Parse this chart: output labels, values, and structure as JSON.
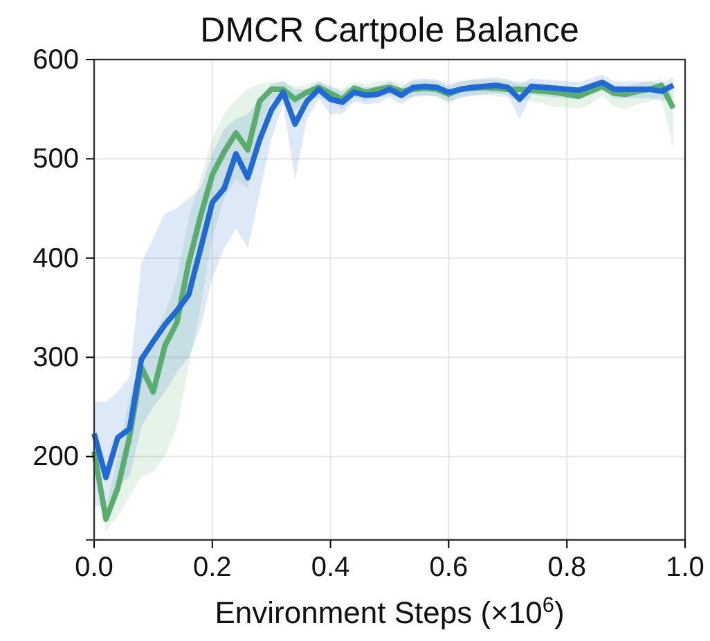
{
  "chart_data": {
    "type": "line",
    "title": "DMCR Cartpole Balance",
    "xlabel": "Environment Steps (×10$^{6}$)",
    "x": [
      0,
      0.02,
      0.04,
      0.06,
      0.08,
      0.1,
      0.12,
      0.14,
      0.16,
      0.18,
      0.2,
      0.22,
      0.24,
      0.26,
      0.28,
      0.3,
      0.32,
      0.34,
      0.36,
      0.38,
      0.4,
      0.42,
      0.44,
      0.46,
      0.48,
      0.5,
      0.52,
      0.54,
      0.56,
      0.58,
      0.6,
      0.62,
      0.64,
      0.66,
      0.68,
      0.7,
      0.72,
      0.74,
      0.76,
      0.78,
      0.8,
      0.82,
      0.84,
      0.86,
      0.88,
      0.9,
      0.92,
      0.94,
      0.96,
      0.98
    ],
    "series": [
      {
        "color": "#5aad6e",
        "values": [
          205,
          137,
          168,
          220,
          290,
          265,
          312,
          335,
          395,
          442,
          484,
          507,
          526,
          509,
          558,
          570,
          570,
          560,
          567,
          572,
          566,
          560,
          571,
          567,
          570,
          572,
          568,
          570,
          571,
          570,
          565,
          570,
          571,
          572,
          571,
          570,
          570,
          569,
          568,
          567,
          565,
          563,
          568,
          573,
          566,
          565,
          568,
          570,
          574,
          551
        ],
        "lower": [
          195,
          125,
          140,
          160,
          180,
          185,
          200,
          230,
          290,
          350,
          420,
          460,
          480,
          470,
          530,
          560,
          562,
          548,
          558,
          562,
          556,
          550,
          562,
          558,
          562,
          564,
          560,
          562,
          563,
          562,
          555,
          562,
          563,
          564,
          563,
          562,
          560,
          558,
          556,
          552,
          552,
          550,
          555,
          563,
          553,
          550,
          555,
          558,
          562,
          510
        ],
        "upper": [
          215,
          150,
          200,
          260,
          300,
          320,
          345,
          380,
          440,
          480,
          520,
          545,
          560,
          570,
          575,
          578,
          578,
          572,
          575,
          578,
          574,
          570,
          578,
          575,
          578,
          579,
          576,
          578,
          579,
          578,
          572,
          578,
          579,
          580,
          579,
          578,
          578,
          577,
          576,
          575,
          573,
          572,
          576,
          580,
          574,
          573,
          576,
          578,
          580,
          562
        ]
      },
      {
        "color": "#2169d3",
        "values": [
          223,
          179,
          219,
          228,
          298,
          316,
          333,
          347,
          363,
          409,
          456,
          470,
          505,
          481,
          519,
          549,
          567,
          535,
          558,
          570,
          560,
          557,
          567,
          564,
          565,
          570,
          564,
          572,
          573,
          572,
          567,
          570,
          572,
          573,
          574,
          572,
          560,
          573,
          572,
          571,
          570,
          569,
          573,
          577,
          570,
          570,
          570,
          570,
          568,
          574
        ],
        "lower": [
          150,
          150,
          170,
          180,
          230,
          250,
          265,
          285,
          300,
          330,
          380,
          410,
          430,
          410,
          465,
          520,
          555,
          479,
          540,
          560,
          545,
          545,
          558,
          555,
          556,
          562,
          555,
          563,
          564,
          563,
          558,
          562,
          564,
          565,
          566,
          564,
          540,
          565,
          563,
          562,
          561,
          560,
          564,
          569,
          561,
          561,
          561,
          561,
          558,
          562
        ],
        "upper": [
          255,
          255,
          265,
          280,
          395,
          420,
          445,
          450,
          460,
          470,
          505,
          530,
          540,
          545,
          560,
          575,
          578,
          570,
          570,
          578,
          572,
          568,
          575,
          572,
          573,
          578,
          572,
          580,
          581,
          580,
          575,
          578,
          580,
          581,
          582,
          580,
          575,
          581,
          580,
          579,
          578,
          577,
          581,
          585,
          578,
          578,
          578,
          578,
          576,
          582
        ]
      }
    ],
    "xlim": [
      0,
      1.0
    ],
    "xticks": [
      {
        "value": 0,
        "label": "0.0"
      },
      0.2,
      0.4,
      0.6,
      0.8,
      {
        "value": 1,
        "label": "1.0"
      }
    ],
    "ylim": [
      116,
      600
    ],
    "yticks": [
      200,
      300,
      400,
      500,
      600
    ],
    "grid": true,
    "line_style": "solid"
  }
}
